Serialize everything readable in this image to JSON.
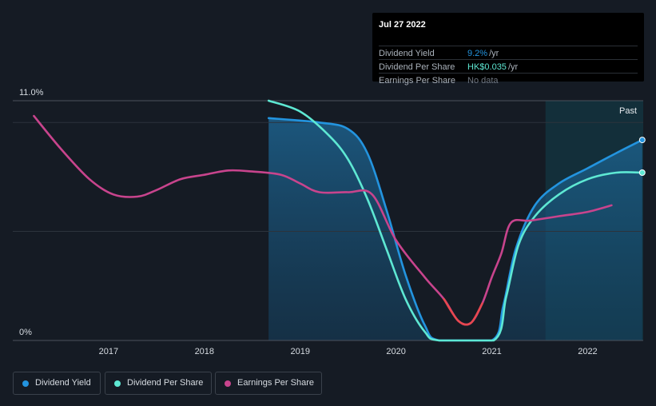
{
  "chart_data": {
    "type": "line",
    "x_range": [
      2016.0,
      2022.58
    ],
    "y_range_pct": [
      0,
      11.0
    ],
    "y_ticks": [
      {
        "label": "11.0%",
        "value": 11.0
      },
      {
        "label": "0%",
        "value": 0
      }
    ],
    "x_ticks": [
      "2017",
      "2018",
      "2019",
      "2020",
      "2021",
      "2022"
    ],
    "x_tick_values": [
      2017,
      2018,
      2019,
      2020,
      2021,
      2022
    ],
    "past_start": 2021.56,
    "past_label": "Past",
    "series": [
      {
        "name": "Dividend Yield",
        "key": "dividend_yield",
        "color": "#2394df",
        "fill": true,
        "points": [
          [
            2018.67,
            10.2
          ],
          [
            2019.2,
            10.0
          ],
          [
            2019.5,
            9.7
          ],
          [
            2019.7,
            8.6
          ],
          [
            2019.9,
            6.0
          ],
          [
            2020.1,
            3.0
          ],
          [
            2020.3,
            0.7
          ],
          [
            2020.45,
            0.0
          ],
          [
            2021.0,
            0.0
          ],
          [
            2021.12,
            1.6
          ],
          [
            2021.25,
            4.2
          ],
          [
            2021.45,
            6.2
          ],
          [
            2021.7,
            7.2
          ],
          [
            2022.0,
            7.9
          ],
          [
            2022.3,
            8.6
          ],
          [
            2022.57,
            9.2
          ]
        ]
      },
      {
        "name": "Dividend Per Share",
        "key": "dividend_per_share",
        "color": "#5ee8d3",
        "fill": false,
        "points": [
          [
            2018.67,
            11.0
          ],
          [
            2019.0,
            10.5
          ],
          [
            2019.3,
            9.4
          ],
          [
            2019.5,
            8.3
          ],
          [
            2019.7,
            6.5
          ],
          [
            2019.9,
            4.2
          ],
          [
            2020.1,
            1.9
          ],
          [
            2020.3,
            0.4
          ],
          [
            2020.45,
            0.0
          ],
          [
            2021.02,
            0.0
          ],
          [
            2021.15,
            2.0
          ],
          [
            2021.28,
            4.4
          ],
          [
            2021.45,
            5.7
          ],
          [
            2021.7,
            6.7
          ],
          [
            2022.0,
            7.4
          ],
          [
            2022.3,
            7.7
          ],
          [
            2022.57,
            7.7
          ]
        ]
      },
      {
        "name": "Earnings Per Share",
        "key": "earnings_per_share",
        "color": "#c8448d",
        "segment_color": "#e8474f",
        "fill": false,
        "points": [
          [
            2016.22,
            10.3
          ],
          [
            2016.5,
            8.8
          ],
          [
            2016.8,
            7.4
          ],
          [
            2017.05,
            6.7
          ],
          [
            2017.3,
            6.6
          ],
          [
            2017.5,
            6.9
          ],
          [
            2017.75,
            7.4
          ],
          [
            2018.0,
            7.6
          ],
          [
            2018.25,
            7.8
          ],
          [
            2018.5,
            7.75
          ],
          [
            2018.8,
            7.6
          ],
          [
            2019.0,
            7.2
          ],
          [
            2019.2,
            6.8
          ],
          [
            2019.5,
            6.8
          ],
          [
            2019.75,
            6.7
          ],
          [
            2020.0,
            4.6
          ],
          [
            2020.3,
            2.9
          ],
          [
            2020.5,
            1.9
          ],
          [
            2020.65,
            0.9
          ],
          [
            2020.78,
            0.8
          ],
          [
            2020.9,
            1.7
          ],
          [
            2021.0,
            2.9
          ],
          [
            2021.1,
            4.0
          ],
          [
            2021.2,
            5.4
          ],
          [
            2021.4,
            5.5
          ],
          [
            2021.7,
            5.7
          ],
          [
            2022.0,
            5.9
          ],
          [
            2022.25,
            6.2
          ]
        ],
        "negative_segment_x": [
          2020.35,
          20
        ]
      }
    ]
  },
  "tooltip": {
    "date": "Jul 27 2022",
    "rows": [
      {
        "label": "Dividend Yield",
        "value": "9.2%",
        "unit": "/yr",
        "color": "#2394df"
      },
      {
        "label": "Dividend Per Share",
        "value": "HK$0.035",
        "unit": "/yr",
        "color": "#5ee8d3"
      },
      {
        "label": "Earnings Per Share",
        "value": "No data",
        "unit": "",
        "color": "#6f7782"
      }
    ]
  },
  "legend": [
    {
      "label": "Dividend Yield",
      "color": "#2394df"
    },
    {
      "label": "Dividend Per Share",
      "color": "#5ee8d3"
    },
    {
      "label": "Earnings Per Share",
      "color": "#c8448d"
    }
  ]
}
